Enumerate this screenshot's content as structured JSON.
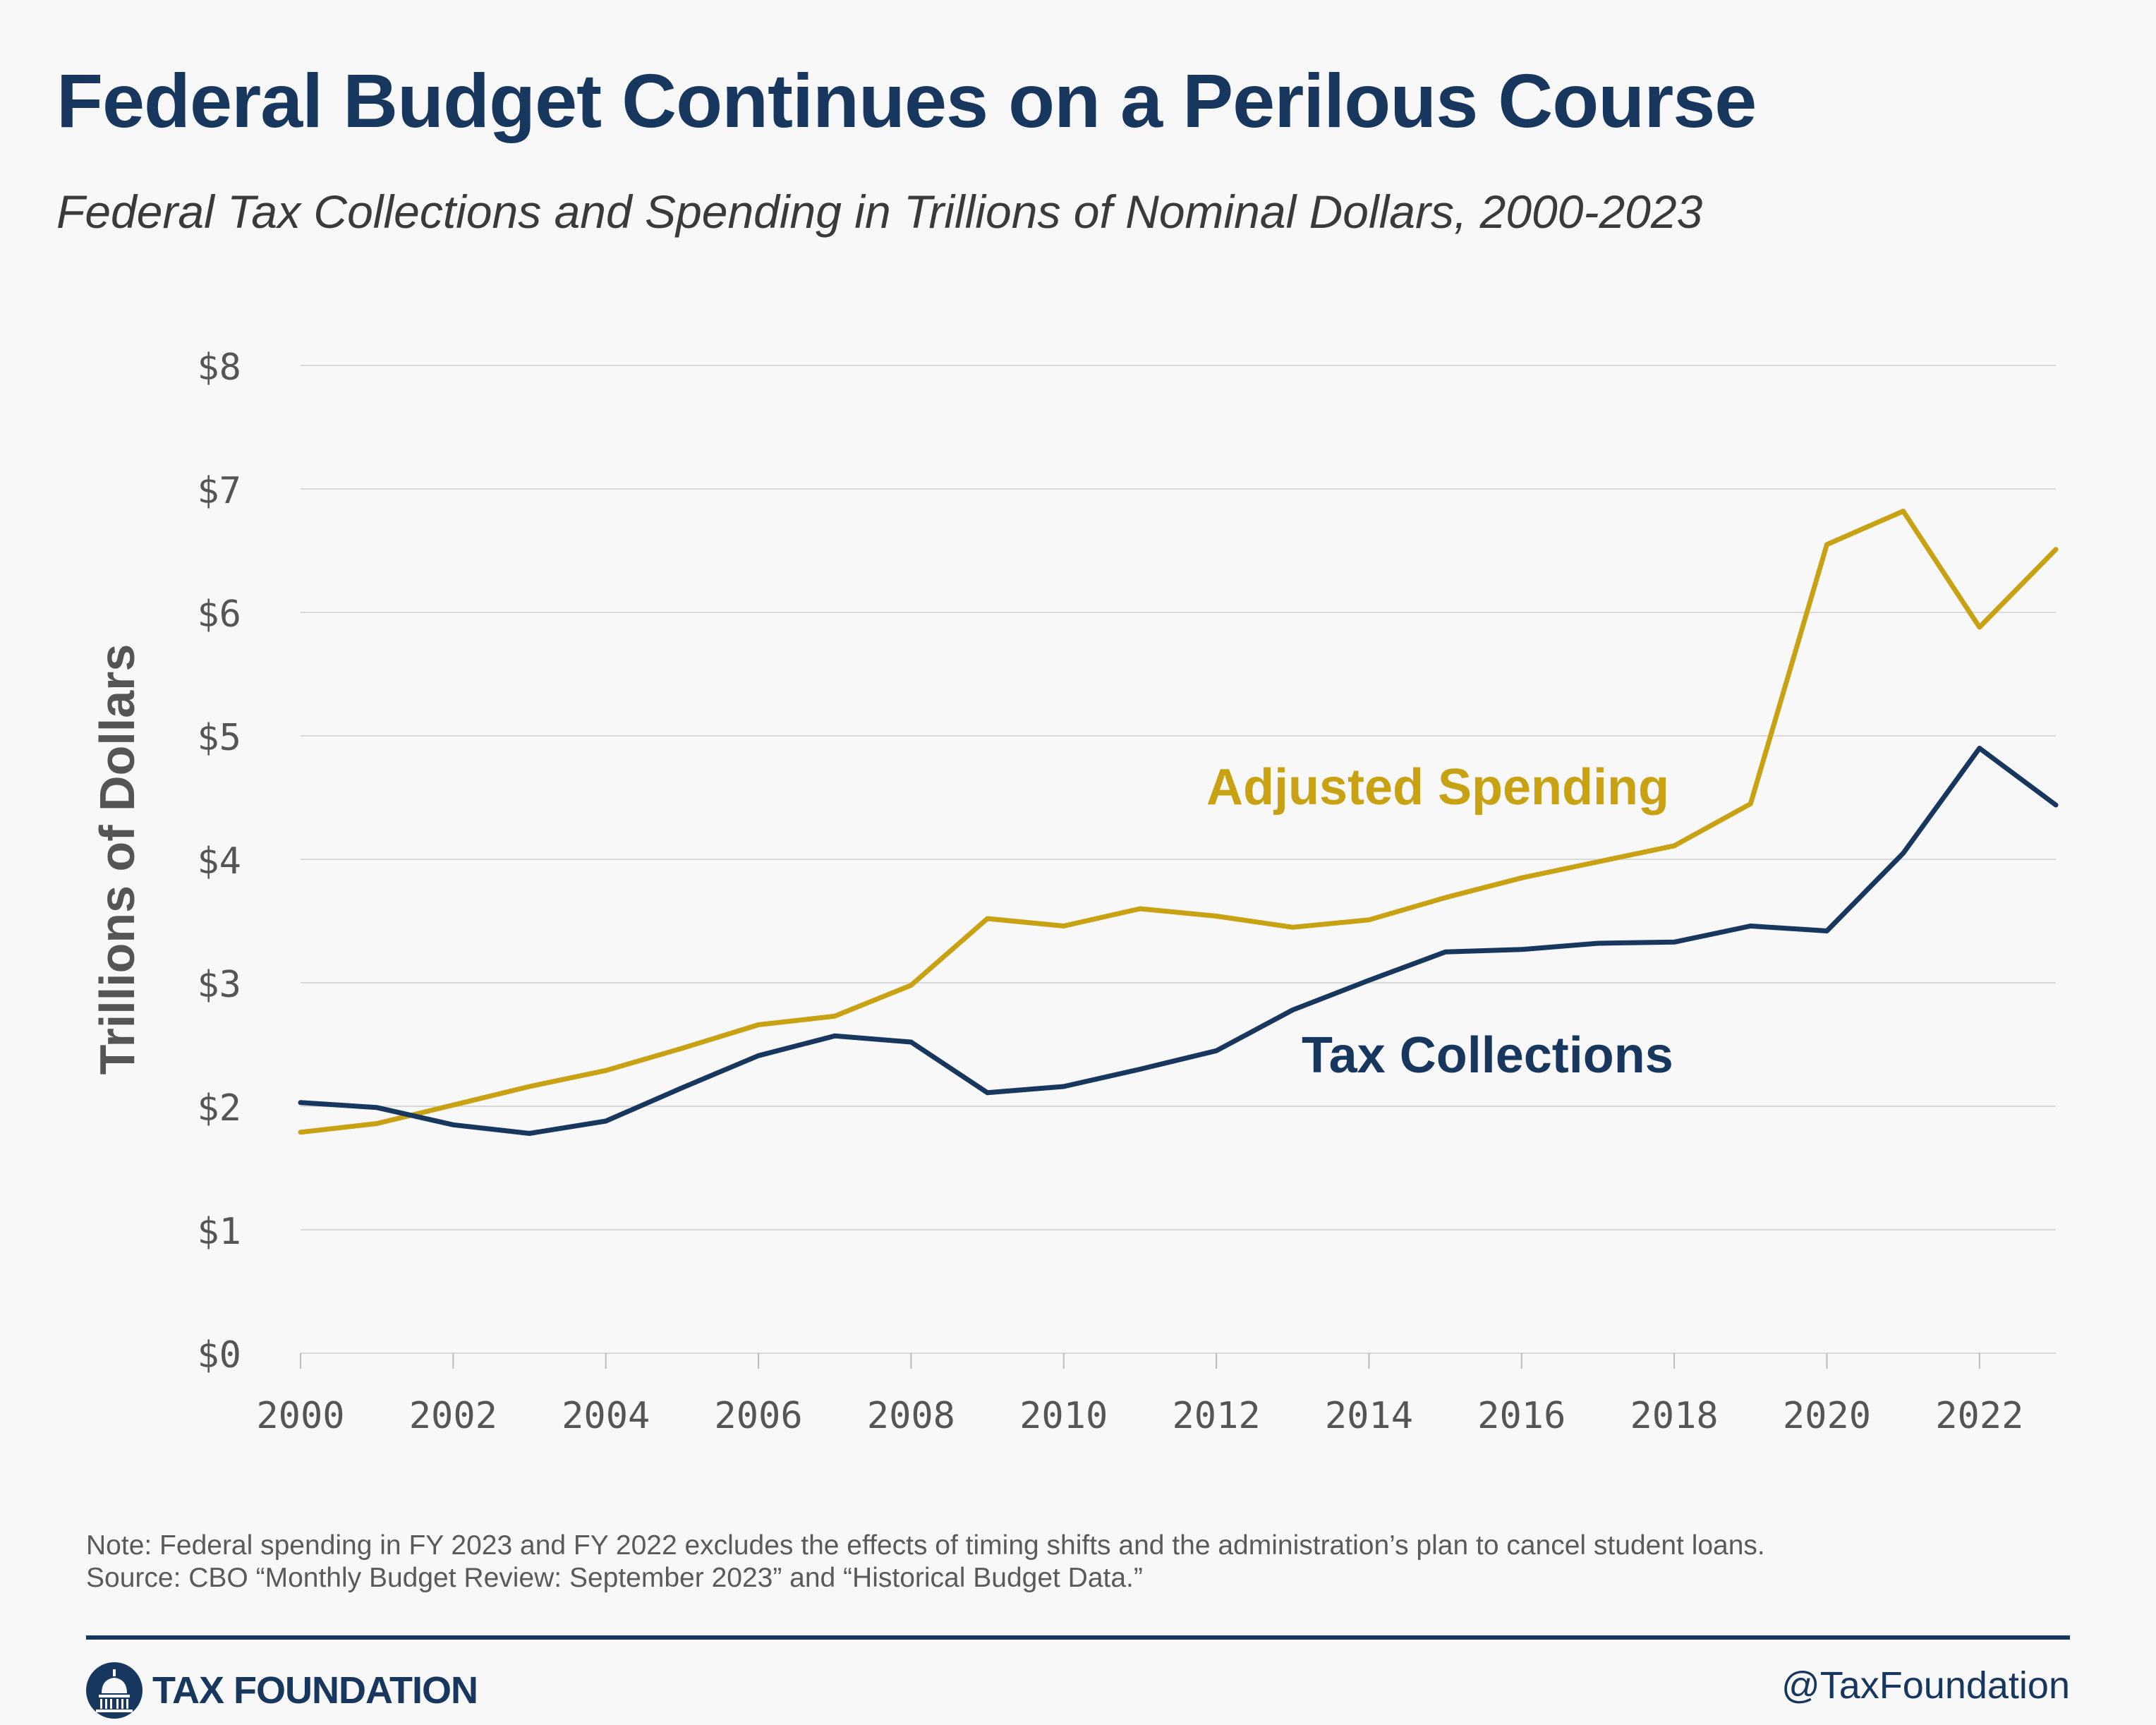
{
  "title": "Federal Budget Continues on a Perilous Course",
  "subtitle": "Federal Tax Collections and Spending in Trillions of Nominal Dollars, 2000-2023",
  "note": "Note: Federal spending in FY 2023 and FY 2022 excludes the effects of timing shifts and the administration’s plan to cancel student loans.",
  "source": "Source: CBO “Monthly Budget Review: September 2023” and “Historical Budget Data.”",
  "footer": {
    "logo_text": "TAX FOUNDATION",
    "handle": "@TaxFoundation"
  },
  "colors": {
    "spending": "#c9a213",
    "tax": "#17375e",
    "grid": "#d9d9d9",
    "axis_text": "#555555"
  },
  "chart_data": {
    "type": "line",
    "ylabel": "Trillions of Dollars",
    "xlabel": "",
    "xlim": [
      2000,
      2023
    ],
    "ylim": [
      0,
      8
    ],
    "grid": true,
    "x_ticks": [
      2000,
      2002,
      2004,
      2006,
      2008,
      2010,
      2012,
      2014,
      2016,
      2018,
      2020,
      2022
    ],
    "y_ticks": [
      {
        "value": 0,
        "label": "$0"
      },
      {
        "value": 1,
        "label": "$1"
      },
      {
        "value": 2,
        "label": "$2"
      },
      {
        "value": 3,
        "label": "$3"
      },
      {
        "value": 4,
        "label": "$4"
      },
      {
        "value": 5,
        "label": "$5"
      },
      {
        "value": 6,
        "label": "$6"
      },
      {
        "value": 7,
        "label": "$7"
      },
      {
        "value": 8,
        "label": "$8"
      }
    ],
    "x": [
      2000,
      2001,
      2002,
      2003,
      2004,
      2005,
      2006,
      2007,
      2008,
      2009,
      2010,
      2011,
      2012,
      2013,
      2014,
      2015,
      2016,
      2017,
      2018,
      2019,
      2020,
      2021,
      2022,
      2023
    ],
    "series": [
      {
        "name": "Adjusted Spending",
        "color": "#c9a213",
        "values": [
          1.79,
          1.86,
          2.01,
          2.16,
          2.29,
          2.47,
          2.66,
          2.73,
          2.98,
          3.52,
          3.46,
          3.6,
          3.54,
          3.45,
          3.51,
          3.69,
          3.85,
          3.98,
          4.11,
          4.45,
          6.55,
          6.82,
          5.88,
          6.51
        ]
      },
      {
        "name": "Tax Collections",
        "color": "#17375e",
        "values": [
          2.03,
          1.99,
          1.85,
          1.78,
          1.88,
          2.15,
          2.41,
          2.57,
          2.52,
          2.11,
          2.16,
          2.3,
          2.45,
          2.78,
          3.02,
          3.25,
          3.27,
          3.32,
          3.33,
          3.46,
          3.42,
          4.05,
          4.9,
          4.44
        ]
      }
    ]
  }
}
